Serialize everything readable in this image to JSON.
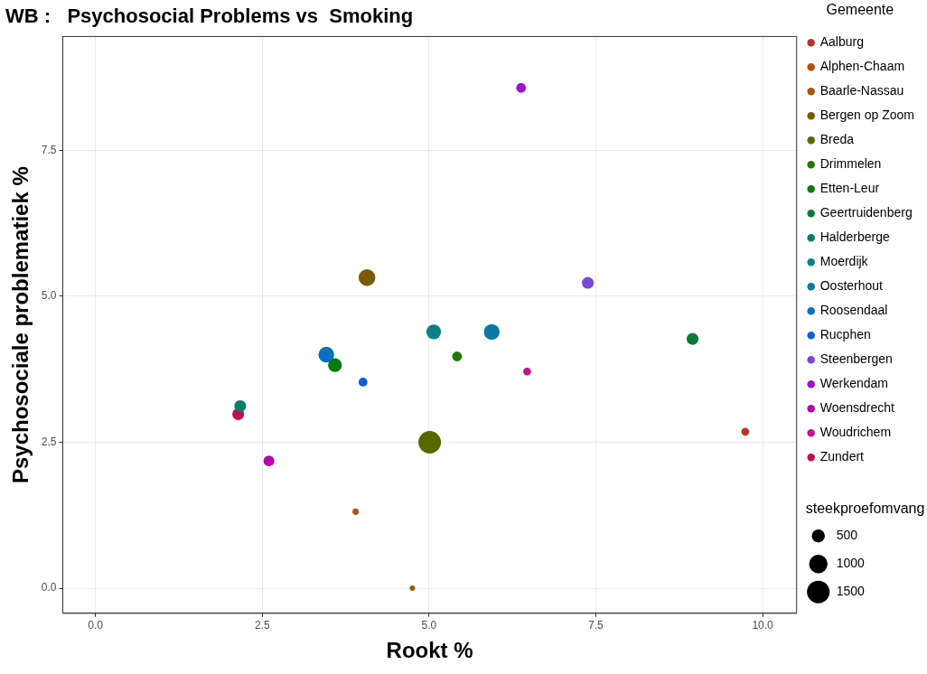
{
  "chart_data": {
    "type": "bubble",
    "title": "WB :   Psychosocial Problems vs  Smoking",
    "xlabel": "Rookt %",
    "ylabel": "Psychosociale problematiek %",
    "legend_title": "Gemeente",
    "xlim": [
      -0.49,
      10.51
    ],
    "ylim": [
      -0.43,
      9.45
    ],
    "xticks": [
      {
        "value": 0,
        "label": "0.0"
      },
      {
        "value": 2.5,
        "label": "2.5"
      },
      {
        "value": 5,
        "label": "5.0"
      },
      {
        "value": 7.5,
        "label": "7.5"
      },
      {
        "value": 10,
        "label": "10.0"
      }
    ],
    "yticks": [
      {
        "value": 0,
        "label": "0.0"
      },
      {
        "value": 2.5,
        "label": "2.5"
      },
      {
        "value": 5,
        "label": "5.0"
      },
      {
        "value": 7.5,
        "label": "7.5"
      }
    ],
    "grid": true,
    "legend": "right",
    "size_legend": [
      500,
      1000,
      1500
    ],
    "annotations": [
      "steekproefomvang"
    ],
    "series": [
      {
        "name": "Aalburg",
        "color": "#b8352a",
        "x": [
          9.74
        ],
        "values": [
          2.68
        ],
        "sizes": [
          180
        ]
      },
      {
        "name": "Alphen-Chaam",
        "color": "#b84d10",
        "x": [
          3.9
        ],
        "values": [
          1.31
        ],
        "sizes": [
          120
        ]
      },
      {
        "name": "Baarle-Nassau",
        "color": "#a05a10",
        "x": [
          4.75
        ],
        "values": [
          0.0
        ],
        "sizes": [
          90
        ]
      },
      {
        "name": "Bergen op Zoom",
        "color": "#7a5c00",
        "x": [
          4.07
        ],
        "values": [
          5.32
        ],
        "sizes": [
          820
        ]
      },
      {
        "name": "Breda",
        "color": "#576800",
        "x": [
          5.01
        ],
        "values": [
          2.5
        ],
        "sizes": [
          1500
        ]
      },
      {
        "name": "Drimmelen",
        "color": "#207a00",
        "x": [
          5.42
        ],
        "values": [
          3.97
        ],
        "sizes": [
          280
        ]
      },
      {
        "name": "Etten-Leur",
        "color": "#0a7a10",
        "x": [
          3.59
        ],
        "values": [
          3.82
        ],
        "sizes": [
          560
        ]
      },
      {
        "name": "Geertruidenberg",
        "color": "#0a7a3a",
        "x": [
          8.95
        ],
        "values": [
          4.27
        ],
        "sizes": [
          410
        ]
      },
      {
        "name": "Halderberge",
        "color": "#0a7e6a",
        "x": [
          2.17
        ],
        "values": [
          3.12
        ],
        "sizes": [
          410
        ]
      },
      {
        "name": "Moerdijk",
        "color": "#0a7f88",
        "x": [
          5.07
        ],
        "values": [
          4.39
        ],
        "sizes": [
          640
        ]
      },
      {
        "name": "Oosterhout",
        "color": "#0a7aa0",
        "x": [
          5.94
        ],
        "values": [
          4.39
        ],
        "sizes": [
          730
        ]
      },
      {
        "name": "Roosendaal",
        "color": "#0a70c0",
        "x": [
          3.46
        ],
        "values": [
          4.0
        ],
        "sizes": [
          730
        ]
      },
      {
        "name": "Rucphen",
        "color": "#1060d8",
        "x": [
          4.01
        ],
        "values": [
          3.53
        ],
        "sizes": [
          230
        ]
      },
      {
        "name": "Steenbergen",
        "color": "#7a48d8",
        "x": [
          7.38
        ],
        "values": [
          5.23
        ],
        "sizes": [
          410
        ]
      },
      {
        "name": "Werkendam",
        "color": "#a010d0",
        "x": [
          6.38
        ],
        "values": [
          8.57
        ],
        "sizes": [
          280
        ]
      },
      {
        "name": "Woensdrecht",
        "color": "#b800b0",
        "x": [
          2.6
        ],
        "values": [
          2.18
        ],
        "sizes": [
          340
        ]
      },
      {
        "name": "Woudrichem",
        "color": "#c8108a",
        "x": [
          6.47
        ],
        "values": [
          3.71
        ],
        "sizes": [
          180
        ]
      },
      {
        "name": "Zundert",
        "color": "#c01055",
        "x": [
          2.14
        ],
        "values": [
          2.98
        ],
        "sizes": [
          410
        ]
      }
    ]
  }
}
